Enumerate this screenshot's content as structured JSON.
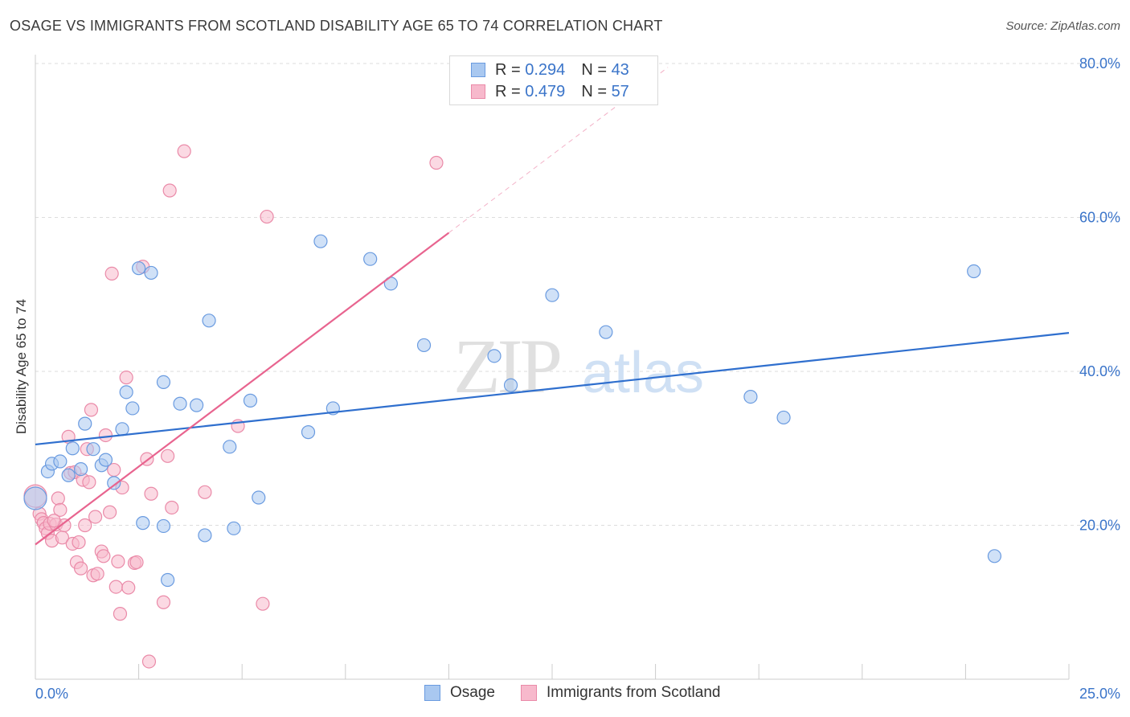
{
  "header": {
    "title": "OSAGE VS IMMIGRANTS FROM SCOTLAND DISABILITY AGE 65 TO 74 CORRELATION CHART",
    "source": "Source: ZipAtlas.com"
  },
  "legend": {
    "rows": [
      {
        "r_label": "R =",
        "r_value": "0.294",
        "n_label": "N =",
        "n_value": "43"
      },
      {
        "r_label": "R =",
        "r_value": "0.479",
        "n_label": "N =",
        "n_value": "57"
      }
    ]
  },
  "watermark": {
    "zip": "ZIP",
    "atlas": "atlas"
  },
  "colors": {
    "osage_fill": "#a9c8f0",
    "osage_stroke": "#6a9be0",
    "osage_line": "#2f6fce",
    "scot_fill": "#f7b9cc",
    "scot_stroke": "#ea8aa8",
    "scot_line": "#e8648f",
    "axis_label": "#3a74c9",
    "grid": "#dddddd"
  },
  "chart_data": {
    "type": "scatter",
    "title": "OSAGE VS IMMIGRANTS FROM SCOTLAND DISABILITY AGE 65 TO 74 CORRELATION CHART",
    "xlabel": "",
    "ylabel": "Disability Age 65 to 74",
    "xlim": [
      0,
      25
    ],
    "ylim": [
      0,
      80
    ],
    "x_tick_labels": [
      "0.0%",
      "25.0%"
    ],
    "y_tick_labels": [
      "20.0%",
      "40.0%",
      "60.0%",
      "80.0%"
    ],
    "y_ticks": [
      20,
      40,
      60,
      80
    ],
    "grid": true,
    "legend_position": "top-center",
    "series": [
      {
        "name": "Osage",
        "r": 0.294,
        "n": 43,
        "trend": {
          "x": [
            0,
            25
          ],
          "y": [
            30.5,
            45.0
          ]
        },
        "points": [
          [
            0.0,
            23.5,
            14
          ],
          [
            0.3,
            27.0,
            8
          ],
          [
            0.4,
            28.0,
            8
          ],
          [
            0.6,
            28.3,
            8
          ],
          [
            0.8,
            26.5,
            8
          ],
          [
            0.9,
            30.0,
            8
          ],
          [
            1.1,
            27.3,
            8
          ],
          [
            1.2,
            33.2,
            8
          ],
          [
            1.4,
            29.9,
            8
          ],
          [
            1.6,
            27.8,
            8
          ],
          [
            1.7,
            28.5,
            8
          ],
          [
            1.9,
            25.5,
            8
          ],
          [
            2.1,
            32.5,
            8
          ],
          [
            2.2,
            37.3,
            8
          ],
          [
            2.35,
            35.2,
            8
          ],
          [
            2.5,
            53.4,
            8
          ],
          [
            2.6,
            20.3,
            8
          ],
          [
            2.8,
            52.8,
            8
          ],
          [
            3.1,
            38.6,
            8
          ],
          [
            3.1,
            19.9,
            8
          ],
          [
            3.2,
            12.9,
            8
          ],
          [
            3.5,
            35.8,
            8
          ],
          [
            3.9,
            35.6,
            8
          ],
          [
            4.1,
            18.7,
            8
          ],
          [
            4.2,
            46.6,
            8
          ],
          [
            4.7,
            30.2,
            8
          ],
          [
            4.8,
            19.6,
            8
          ],
          [
            5.2,
            36.2,
            8
          ],
          [
            5.4,
            23.6,
            8
          ],
          [
            6.6,
            32.1,
            8
          ],
          [
            6.9,
            56.9,
            8
          ],
          [
            7.2,
            35.2,
            8
          ],
          [
            8.1,
            54.6,
            8
          ],
          [
            8.6,
            51.4,
            8
          ],
          [
            9.4,
            43.4,
            8
          ],
          [
            11.1,
            42.0,
            8
          ],
          [
            11.5,
            38.2,
            8
          ],
          [
            12.5,
            49.9,
            8
          ],
          [
            13.8,
            45.1,
            8
          ],
          [
            17.3,
            36.7,
            8
          ],
          [
            18.1,
            34.0,
            8
          ],
          [
            22.7,
            53.0,
            8
          ],
          [
            23.2,
            16.0,
            8
          ]
        ]
      },
      {
        "name": "Immigrants from Scotland",
        "r": 0.479,
        "n": 57,
        "trend": {
          "x": [
            0,
            10.0
          ],
          "y": [
            17.5,
            58.0
          ]
        },
        "trend_dashed": {
          "x": [
            10.0,
            15.3
          ],
          "y": [
            58.0,
            79.5
          ]
        },
        "points": [
          [
            0.0,
            23.8,
            14
          ],
          [
            0.1,
            21.5,
            8
          ],
          [
            0.15,
            20.8,
            8
          ],
          [
            0.2,
            20.3,
            8
          ],
          [
            0.25,
            19.6,
            8
          ],
          [
            0.3,
            19.0,
            8
          ],
          [
            0.35,
            20.2,
            8
          ],
          [
            0.4,
            18.0,
            8
          ],
          [
            0.5,
            20.1,
            8
          ],
          [
            0.55,
            23.5,
            8
          ],
          [
            0.6,
            22.0,
            8
          ],
          [
            0.65,
            18.4,
            8
          ],
          [
            0.7,
            20.0,
            8
          ],
          [
            0.8,
            31.5,
            8
          ],
          [
            0.85,
            26.8,
            8
          ],
          [
            0.9,
            17.6,
            8
          ],
          [
            0.95,
            26.9,
            8
          ],
          [
            1.0,
            15.2,
            8
          ],
          [
            1.05,
            17.8,
            8
          ],
          [
            1.1,
            14.4,
            8
          ],
          [
            1.15,
            25.9,
            8
          ],
          [
            1.2,
            20.0,
            8
          ],
          [
            1.25,
            29.9,
            8
          ],
          [
            1.3,
            25.6,
            8
          ],
          [
            1.35,
            35.0,
            8
          ],
          [
            1.4,
            13.5,
            8
          ],
          [
            1.45,
            21.1,
            8
          ],
          [
            1.5,
            13.7,
            8
          ],
          [
            1.6,
            16.6,
            8
          ],
          [
            1.65,
            16.0,
            8
          ],
          [
            1.7,
            31.7,
            8
          ],
          [
            1.8,
            21.7,
            8
          ],
          [
            1.85,
            52.7,
            8
          ],
          [
            1.9,
            27.2,
            8
          ],
          [
            1.95,
            12.0,
            8
          ],
          [
            2.0,
            15.3,
            8
          ],
          [
            2.05,
            8.5,
            8
          ],
          [
            2.1,
            24.9,
            8
          ],
          [
            2.2,
            39.2,
            8
          ],
          [
            2.25,
            11.9,
            8
          ],
          [
            2.4,
            15.1,
            8
          ],
          [
            2.45,
            15.2,
            8
          ],
          [
            2.6,
            53.6,
            8
          ],
          [
            2.7,
            28.6,
            8
          ],
          [
            2.75,
            2.3,
            8
          ],
          [
            2.8,
            24.1,
            8
          ],
          [
            3.1,
            10.0,
            8
          ],
          [
            3.2,
            29.0,
            8
          ],
          [
            3.25,
            63.5,
            8
          ],
          [
            3.3,
            22.3,
            8
          ],
          [
            3.6,
            68.6,
            8
          ],
          [
            4.1,
            24.3,
            8
          ],
          [
            4.9,
            32.9,
            8
          ],
          [
            5.5,
            9.8,
            8
          ],
          [
            5.6,
            60.1,
            8
          ],
          [
            9.7,
            67.1,
            8
          ],
          [
            0.45,
            20.6,
            8
          ]
        ]
      }
    ]
  },
  "bottom_legend": [
    {
      "label": "Osage"
    },
    {
      "label": "Immigrants from Scotland"
    }
  ]
}
